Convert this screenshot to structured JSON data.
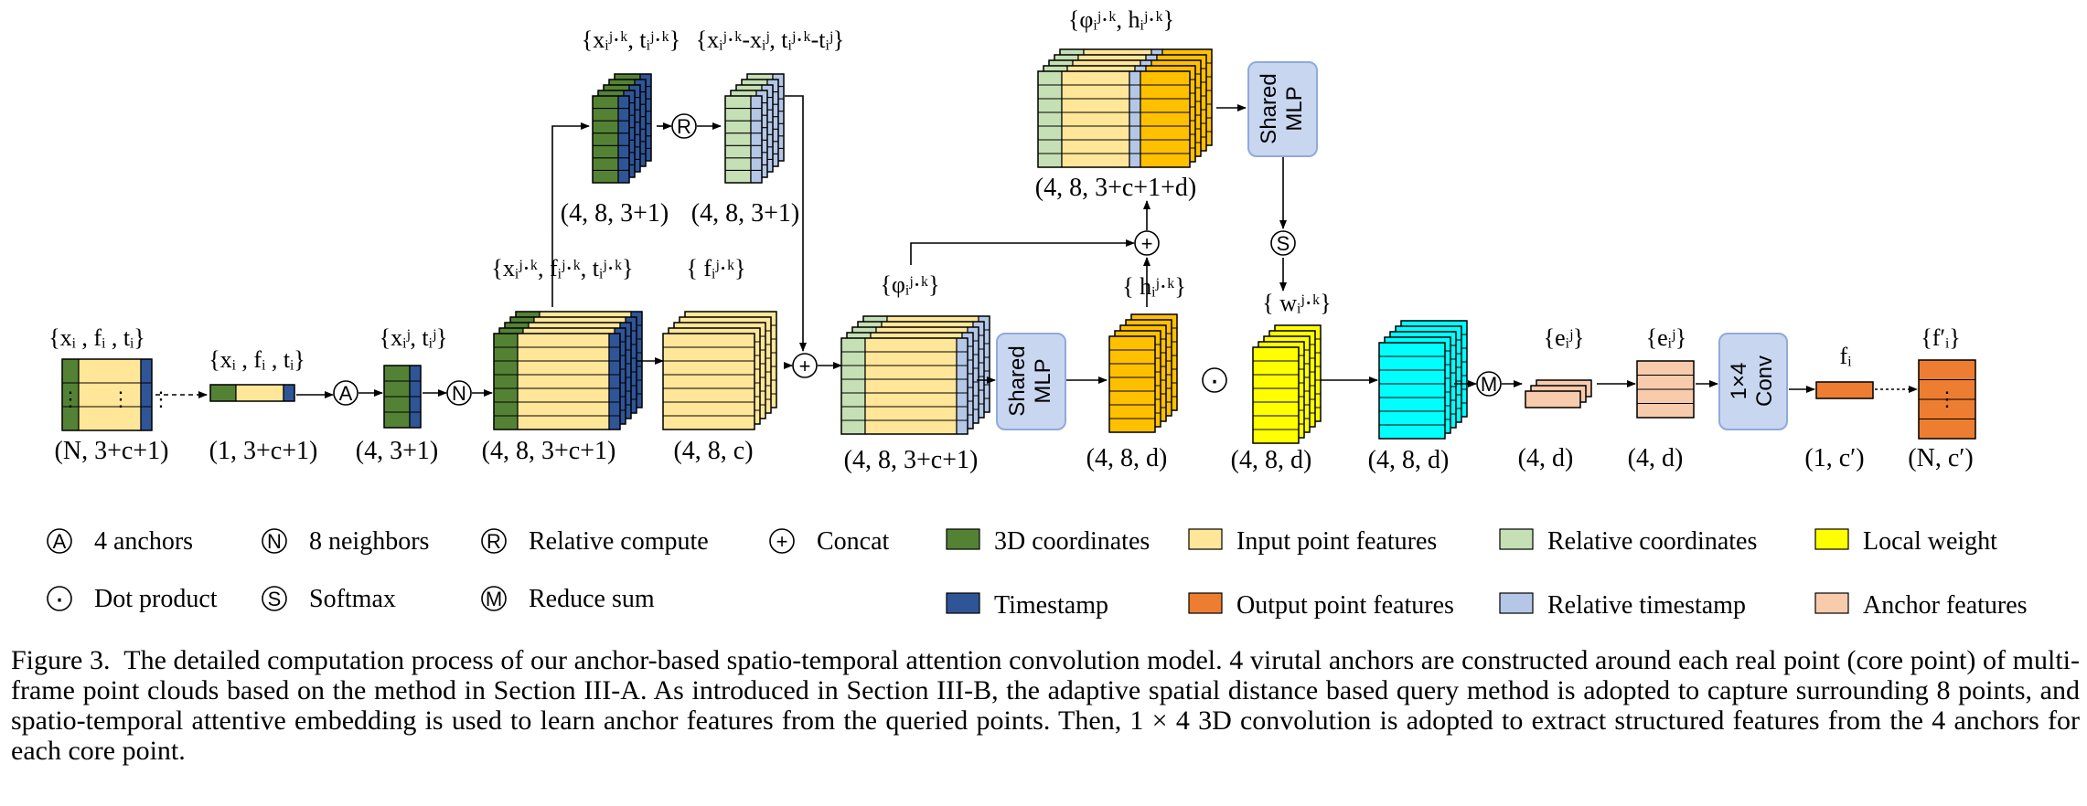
{
  "colors": {
    "coord3d": "#548235",
    "input_feat": "#FFE699",
    "rel_coord": "#C5E0B4",
    "local_weight": "#FFFF00",
    "timestamp": "#2F5597",
    "output_feat": "#ED7D31",
    "rel_time": "#B4C7E7",
    "anchor_feat": "#F8CBAD",
    "orange": "#FFC000",
    "cyan": "#00FFFF",
    "mlp_box": "#C9D6F0",
    "mlp_border": "#8FAADC"
  },
  "ops": {
    "anchor": "A",
    "neighbor": "N",
    "relative": "R",
    "concat": "+",
    "dot": "·",
    "softmax": "S",
    "reduce": "M"
  },
  "blocks": {
    "shared_mlp": "Shared MLP",
    "conv": "1×4 Conv"
  },
  "labels": {
    "b1_top": "{xᵢ , fᵢ , tᵢ}",
    "b1_dim": "(N, 3+c+1)",
    "b2_top": "{xᵢ , fᵢ , tᵢ}",
    "b2_dim": "(1, 3+c+1)",
    "b3_top": "{xᵢʲ, tᵢʲ}",
    "b3_dim": "(4, 3+1)",
    "b4_top": "{xᵢʲ·ᵏ, fᵢʲ·ᵏ, tᵢʲ·ᵏ}",
    "b4_dim": "(4, 8, 3+c+1)",
    "b5_top": "{ fᵢʲ·ᵏ}",
    "b5_dim": "(4, 8, c)",
    "u1_top": "{xᵢʲ·ᵏ, tᵢʲ·ᵏ}",
    "u1_dim": "(4, 8, 3+1)",
    "u2_top": "{xᵢʲ·ᵏ-xᵢʲ, tᵢʲ·ᵏ-tᵢʲ}",
    "u2_dim": "(4, 8, 3+1)",
    "b6_top": "{φᵢʲ·ᵏ}",
    "b6_dim": "(4, 8, 3+c+1)",
    "b7_top": "{ hᵢʲ·ᵏ}",
    "b7_dim": "(4, 8, d)",
    "t1_top": "{φᵢʲ·ᵏ, hᵢʲ·ᵏ}",
    "t1_dim": "(4, 8, 3+c+1+d)",
    "b8_top": "{ wᵢʲ·ᵏ}",
    "b8_dim": "(4, 8, d)",
    "b9_dim": "(4, 8, d)",
    "b10_top": "{eᵢʲ}",
    "b10_dim": "(4, d)",
    "b11_top": "{eᵢʲ}",
    "b11_dim": "(4, d)",
    "b12_top": "fᵢ",
    "b12_dim": "(1, c′)",
    "b13_top": "{f′ᵢ}",
    "b13_dim": "(N, c′)"
  },
  "legend": {
    "ops": [
      {
        "sym": "A",
        "text": "4   anchors"
      },
      {
        "sym": "N",
        "text": "8   neighbors"
      },
      {
        "sym": "R",
        "text": "Relative compute"
      },
      {
        "sym": "+",
        "text": "Concat"
      },
      {
        "sym": "·",
        "text": "Dot product"
      },
      {
        "sym": "S",
        "text": "Softmax"
      },
      {
        "sym": "M",
        "text": "Reduce sum"
      }
    ],
    "colors": [
      {
        "text": "3D coordinates",
        "color": "#548235"
      },
      {
        "text": "Input point features",
        "color": "#FFE699"
      },
      {
        "text": "Relative coordinates",
        "color": "#C5E0B4"
      },
      {
        "text": "Local weight",
        "color": "#FFFF00"
      },
      {
        "text": "Timestamp",
        "color": "#2F5597"
      },
      {
        "text": "Output point features",
        "color": "#ED7D31"
      },
      {
        "text": "Relative timestamp",
        "color": "#B4C7E7"
      },
      {
        "text": "Anchor features",
        "color": "#F8CBAD"
      }
    ]
  },
  "caption": {
    "label": "Figure 3.",
    "text": "The detailed computation process of our anchor-based spatio-temporal attention convolution model. 4 virutal anchors are constructed around each real point (core point) of multi-frame point clouds based on the method in Section III-A. As introduced in Section III-B, the adaptive spatial distance based query method is adopted to capture surrounding 8 points, and spatio-temporal attentive embedding is used to learn anchor features from the queried points. Then, 1 × 4 3D convolution is adopted to extract structured features from the 4 anchors for each core point."
  }
}
